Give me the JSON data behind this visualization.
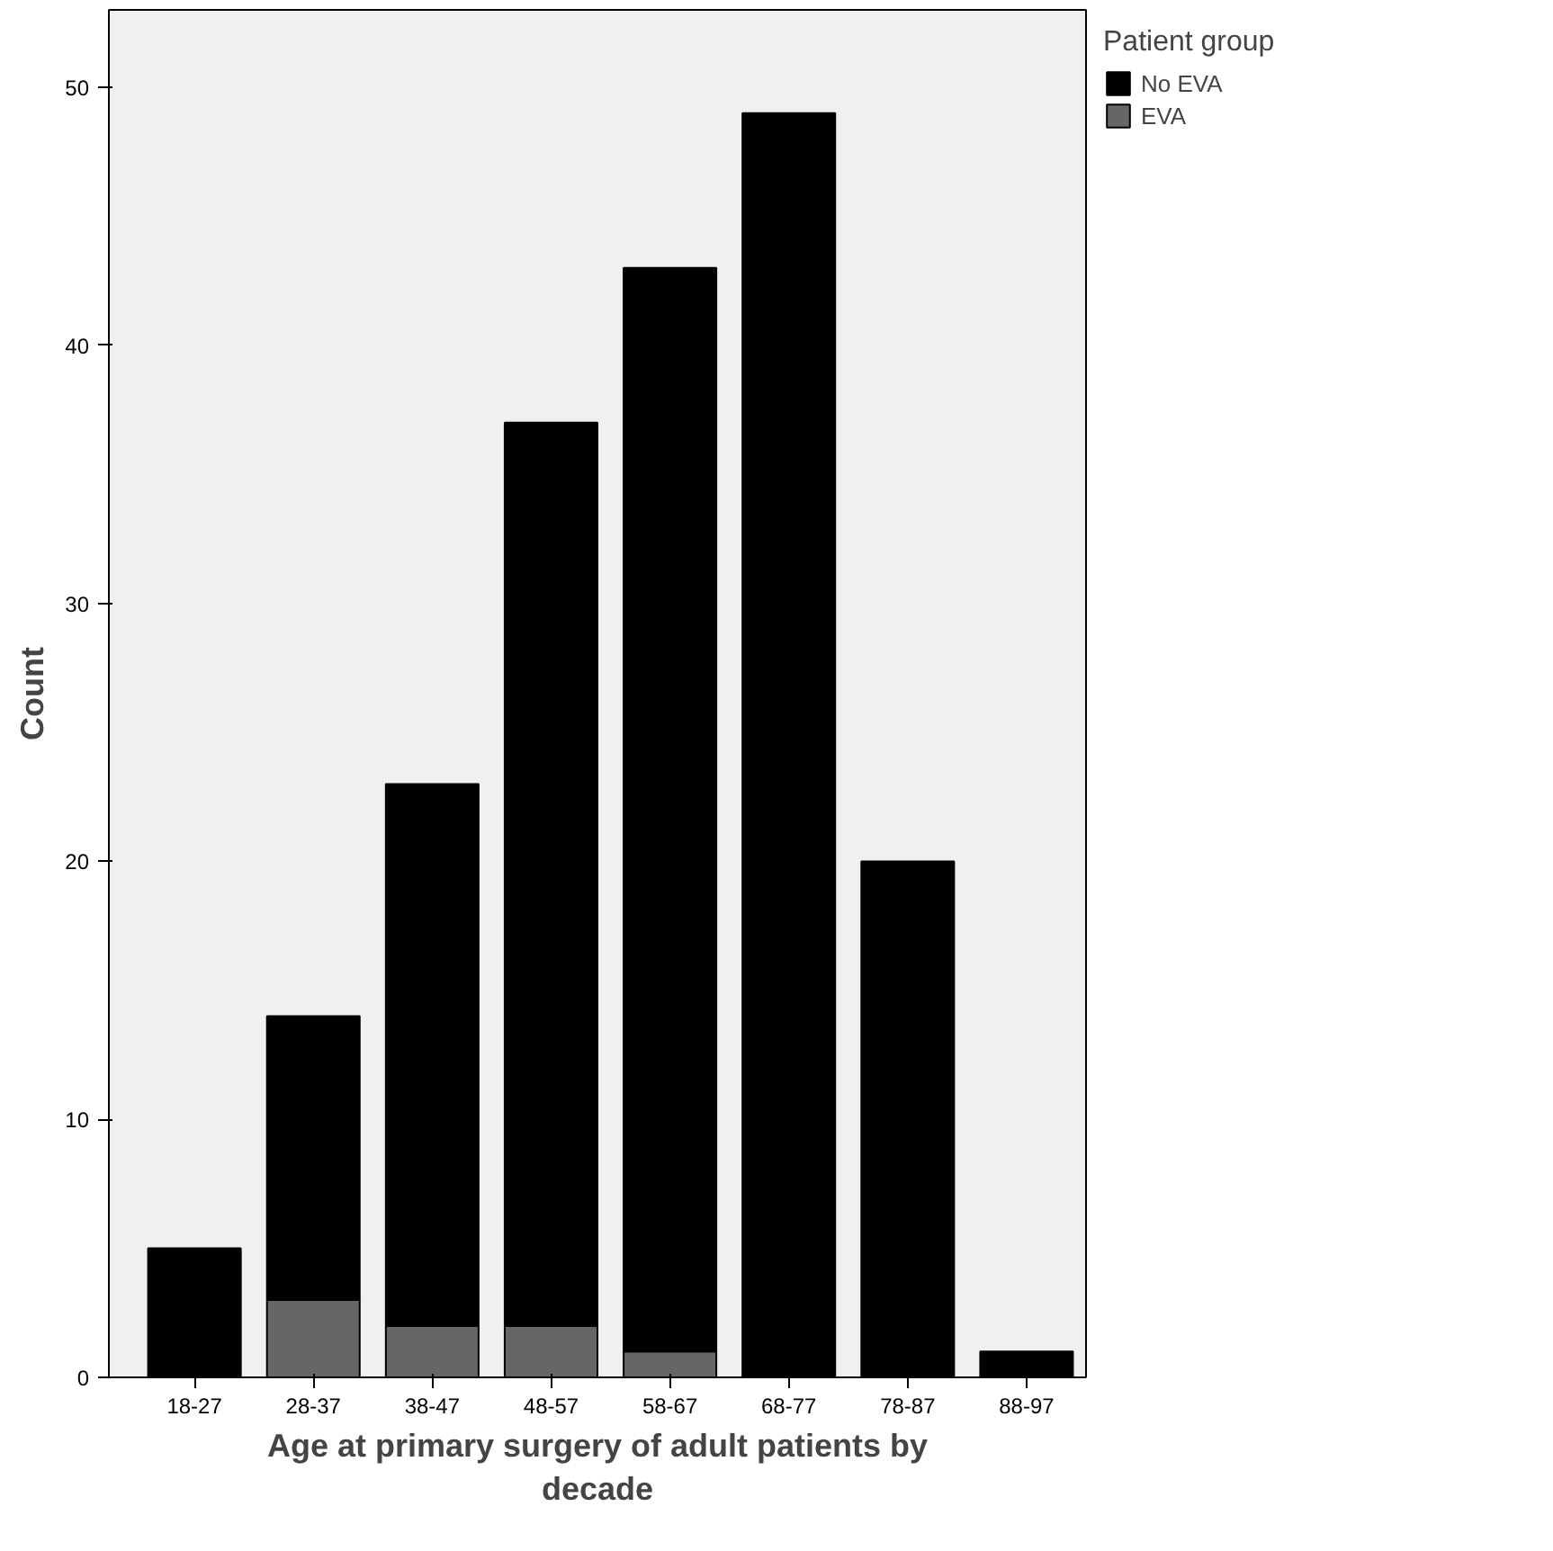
{
  "chart_data": {
    "type": "bar",
    "stacked": true,
    "xlabel": "Age at primary surgery of adult patients by decade",
    "ylabel": "Count",
    "legend_title": "Patient group",
    "legend": "top right",
    "grid": false,
    "categories": [
      "18-27",
      "28-37",
      "38-47",
      "48-57",
      "58-67",
      "68-77",
      "78-87",
      "88-97"
    ],
    "series": [
      {
        "name": "EVA",
        "color": "#666666",
        "values": [
          0,
          3,
          2,
          2,
          1,
          0,
          0,
          0
        ]
      },
      {
        "name": "No EVA",
        "color": "#000000",
        "values": [
          5,
          11,
          21,
          35,
          42,
          49,
          20,
          1
        ]
      }
    ],
    "ylim": [
      0,
      53
    ],
    "yticks": [
      0,
      10,
      20,
      30,
      40,
      50
    ]
  }
}
